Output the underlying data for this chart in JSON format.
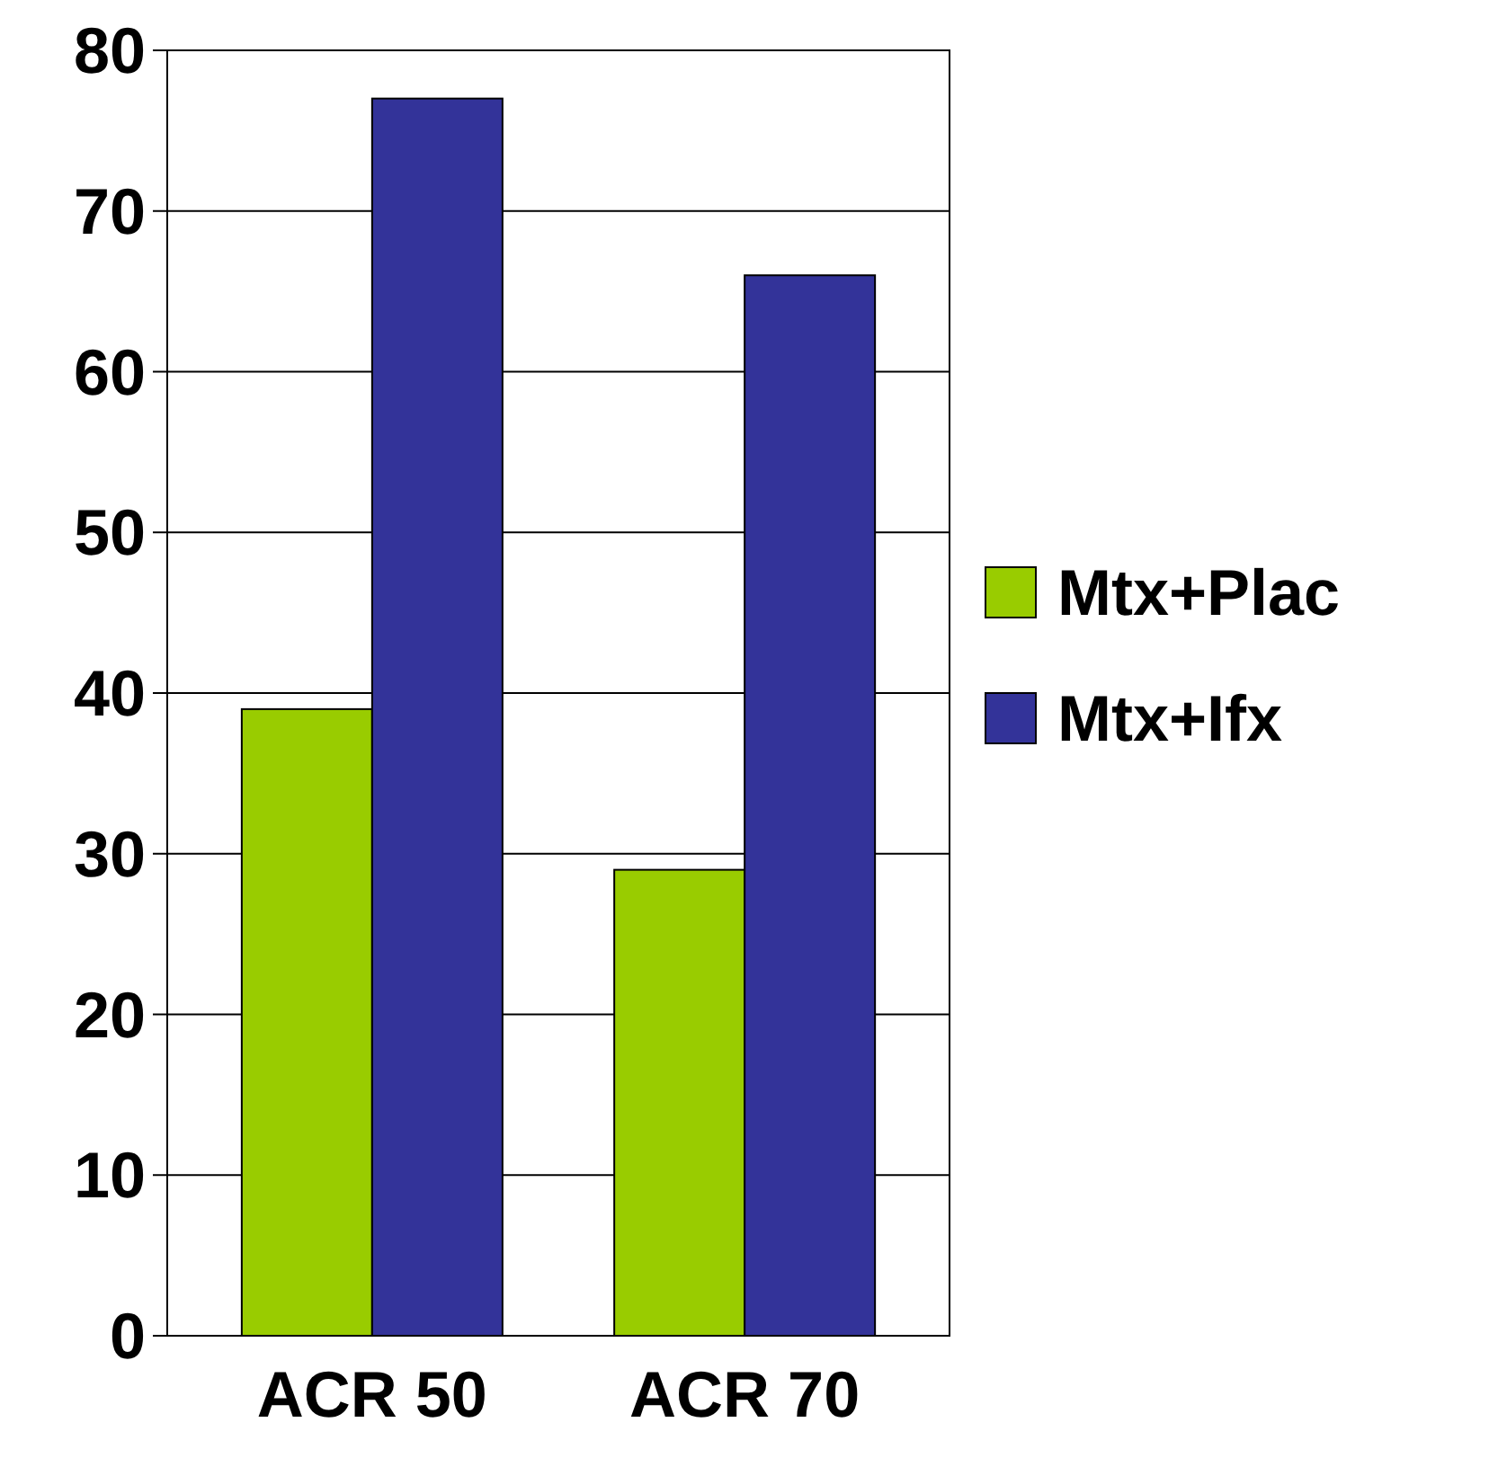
{
  "chart_data": {
    "type": "bar",
    "categories": [
      "ACR 50",
      "ACR 70"
    ],
    "series": [
      {
        "name": "Mtx+Plac",
        "color": "#99cc00",
        "values": [
          39,
          29
        ]
      },
      {
        "name": "Mtx+Ifx",
        "color": "#333399",
        "values": [
          77,
          66
        ]
      }
    ],
    "ylim": [
      0,
      80
    ],
    "yticks": [
      0,
      10,
      20,
      30,
      40,
      50,
      60,
      70,
      80
    ],
    "grid": "y",
    "legend": "right"
  }
}
